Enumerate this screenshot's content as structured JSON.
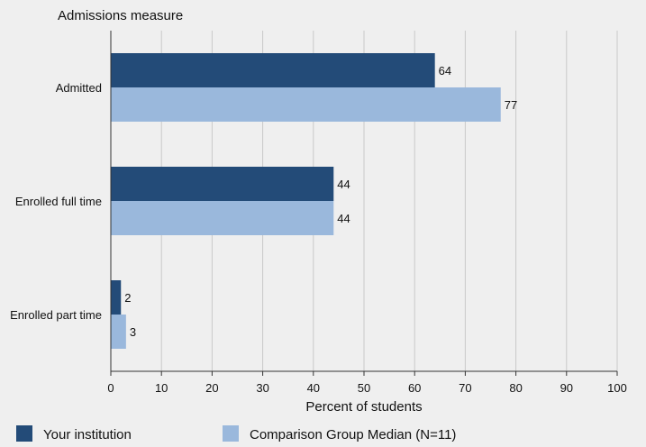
{
  "chart_data": {
    "type": "bar",
    "orientation": "horizontal",
    "title": "Admissions measure",
    "xlabel": "Percent of students",
    "ylabel": "",
    "categories": [
      "Admitted",
      "Enrolled full time",
      "Enrolled part time"
    ],
    "series": [
      {
        "name": "Your institution",
        "values": [
          64,
          44,
          2
        ],
        "color": "#234b78"
      },
      {
        "name": "Comparison Group Median (N=11)",
        "values": [
          77,
          44,
          3
        ],
        "color": "#9ab8dc"
      }
    ],
    "xlim": [
      0,
      100
    ],
    "xticks": [
      "0",
      "10",
      "20",
      "30",
      "40",
      "50",
      "60",
      "70",
      "80",
      "90",
      "100"
    ],
    "grid": true,
    "legend_position": "bottom"
  }
}
